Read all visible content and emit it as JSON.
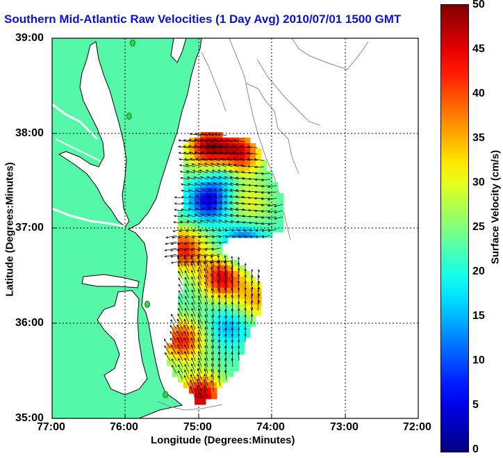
{
  "title": "Southern Mid-Atlantic Raw Velocities (1 Day Avg) 2010/07/01 1500 GMT",
  "x_axis": {
    "label": "Longitude (Degrees:Minutes)",
    "ticks": [
      "77:00",
      "76:00",
      "75:00",
      "74:00",
      "73:00",
      "72:00"
    ]
  },
  "y_axis": {
    "label": "Latitude (Degrees:Minutes)",
    "ticks": [
      "39:00",
      "38:00",
      "37:00",
      "36:00",
      "35:00"
    ]
  },
  "colorbar": {
    "label": "Surface Velocity (cm/s)",
    "ticks": [
      "50",
      "45",
      "40",
      "35",
      "30",
      "25",
      "20",
      "15",
      "10",
      "5",
      "0"
    ],
    "min": 0,
    "max": 50
  },
  "colors": {
    "title": "#0a10d8",
    "land": "#55f7a8",
    "coast": "#000000",
    "bathymetry": "#8a8a8a",
    "station": "#2ed44a"
  },
  "map_extent": {
    "lon_min": -77.0,
    "lon_max": -72.0,
    "lat_min": 35.0,
    "lat_max": 39.0
  },
  "stations": [
    {
      "lon": -75.9,
      "lat": 38.95
    },
    {
      "lon": -75.95,
      "lat": 38.18
    },
    {
      "lon": -75.7,
      "lat": 36.2
    },
    {
      "lon": -75.45,
      "lat": 35.25
    }
  ]
}
